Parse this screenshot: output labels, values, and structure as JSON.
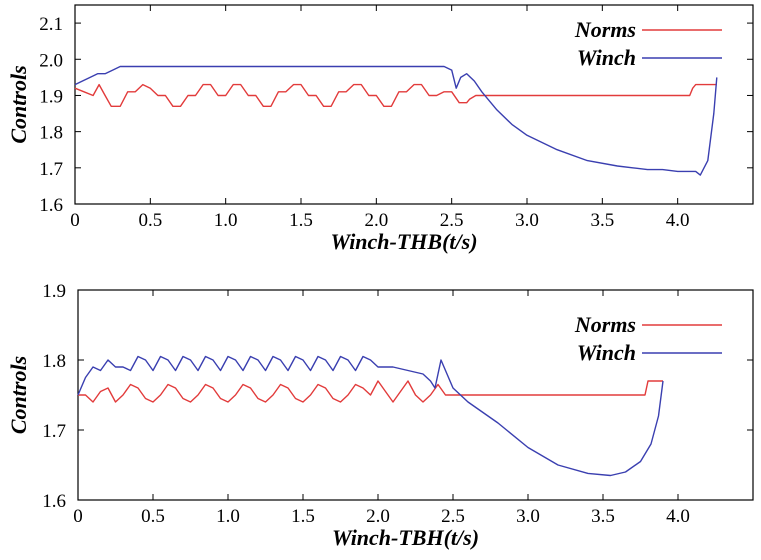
{
  "chart_data": [
    {
      "type": "line",
      "xlabel": "Winch-THB(t/s)",
      "ylabel": "Controls",
      "xlim": [
        0,
        4.5
      ],
      "ylim": [
        1.6,
        2.15
      ],
      "xticks": [
        0,
        0.5,
        1.0,
        1.5,
        2.0,
        2.5,
        3.0,
        3.5,
        4.0
      ],
      "xtick_labels": [
        "0",
        "0.5",
        "1.0",
        "1.5",
        "2.0",
        "2.5",
        "3.0",
        "3.5",
        "4.0"
      ],
      "yticks": [
        1.6,
        1.7,
        1.8,
        1.9,
        2.0,
        2.1
      ],
      "ytick_labels": [
        "1.6",
        "1.7",
        "1.8",
        "1.9",
        "2.0",
        "2.1"
      ],
      "legend_position": "top-right",
      "series": [
        {
          "name": "Norms",
          "color": "#e23b3b",
          "x": [
            0,
            0.06,
            0.12,
            0.16,
            0.2,
            0.24,
            0.3,
            0.35,
            0.4,
            0.45,
            0.5,
            0.55,
            0.6,
            0.65,
            0.7,
            0.75,
            0.8,
            0.85,
            0.9,
            0.95,
            1.0,
            1.05,
            1.1,
            1.15,
            1.2,
            1.25,
            1.3,
            1.35,
            1.4,
            1.45,
            1.5,
            1.55,
            1.6,
            1.65,
            1.7,
            1.75,
            1.8,
            1.85,
            1.9,
            1.95,
            2.0,
            2.05,
            2.1,
            2.15,
            2.2,
            2.25,
            2.3,
            2.35,
            2.4,
            2.45,
            2.5,
            2.55,
            2.6,
            2.62,
            2.66,
            2.7,
            2.8,
            3.0,
            3.2,
            3.4,
            3.6,
            3.8,
            4.0,
            4.08,
            4.1,
            4.12,
            4.2,
            4.26
          ],
          "y": [
            1.92,
            1.91,
            1.9,
            1.93,
            1.9,
            1.87,
            1.87,
            1.91,
            1.91,
            1.93,
            1.92,
            1.9,
            1.9,
            1.87,
            1.87,
            1.9,
            1.9,
            1.93,
            1.93,
            1.9,
            1.9,
            1.93,
            1.93,
            1.9,
            1.9,
            1.87,
            1.87,
            1.91,
            1.91,
            1.93,
            1.93,
            1.9,
            1.9,
            1.87,
            1.87,
            1.91,
            1.91,
            1.93,
            1.93,
            1.9,
            1.9,
            1.87,
            1.87,
            1.91,
            1.91,
            1.93,
            1.93,
            1.9,
            1.9,
            1.91,
            1.91,
            1.88,
            1.88,
            1.89,
            1.9,
            1.9,
            1.9,
            1.9,
            1.9,
            1.9,
            1.9,
            1.9,
            1.9,
            1.9,
            1.92,
            1.93,
            1.93,
            1.93
          ]
        },
        {
          "name": "Winch",
          "color": "#3a3fb0",
          "x": [
            0,
            0.05,
            0.1,
            0.15,
            0.2,
            0.25,
            0.3,
            0.4,
            0.5,
            0.6,
            0.7,
            0.8,
            0.9,
            1.0,
            1.1,
            1.2,
            1.3,
            1.4,
            1.5,
            1.6,
            1.7,
            1.8,
            1.9,
            2.0,
            2.1,
            2.2,
            2.3,
            2.4,
            2.45,
            2.5,
            2.53,
            2.56,
            2.6,
            2.65,
            2.7,
            2.8,
            2.9,
            3.0,
            3.2,
            3.4,
            3.6,
            3.7,
            3.8,
            3.9,
            4.0,
            4.08,
            4.12,
            4.15,
            4.2,
            4.24,
            4.26
          ],
          "y": [
            1.93,
            1.94,
            1.95,
            1.96,
            1.96,
            1.97,
            1.98,
            1.98,
            1.98,
            1.98,
            1.98,
            1.98,
            1.98,
            1.98,
            1.98,
            1.98,
            1.98,
            1.98,
            1.98,
            1.98,
            1.98,
            1.98,
            1.98,
            1.98,
            1.98,
            1.98,
            1.98,
            1.98,
            1.98,
            1.97,
            1.92,
            1.95,
            1.96,
            1.94,
            1.91,
            1.86,
            1.82,
            1.79,
            1.75,
            1.72,
            1.705,
            1.7,
            1.695,
            1.695,
            1.69,
            1.69,
            1.69,
            1.68,
            1.72,
            1.85,
            1.95
          ]
        }
      ]
    },
    {
      "type": "line",
      "xlabel": "Winch-TBH(t/s)",
      "ylabel": "Controls",
      "xlim": [
        0,
        4.5
      ],
      "ylim": [
        1.6,
        1.9
      ],
      "xticks": [
        0,
        0.5,
        1.0,
        1.5,
        2.0,
        2.5,
        3.0,
        3.5,
        4.0
      ],
      "xtick_labels": [
        "0",
        "0.5",
        "1.0",
        "1.5",
        "2.0",
        "2.5",
        "3.0",
        "3.5",
        "4.0"
      ],
      "yticks": [
        1.6,
        1.7,
        1.8,
        1.9
      ],
      "ytick_labels": [
        "1.6",
        "1.7",
        "1.8",
        "1.9"
      ],
      "legend_position": "top-right",
      "series": [
        {
          "name": "Norms",
          "color": "#e23b3b",
          "x": [
            0,
            0.05,
            0.1,
            0.15,
            0.2,
            0.25,
            0.3,
            0.35,
            0.4,
            0.45,
            0.5,
            0.55,
            0.6,
            0.65,
            0.7,
            0.75,
            0.8,
            0.85,
            0.9,
            0.95,
            1.0,
            1.05,
            1.1,
            1.15,
            1.2,
            1.25,
            1.3,
            1.35,
            1.4,
            1.45,
            1.5,
            1.55,
            1.6,
            1.65,
            1.7,
            1.75,
            1.8,
            1.85,
            1.9,
            1.95,
            2.0,
            2.05,
            2.1,
            2.15,
            2.2,
            2.25,
            2.3,
            2.35,
            2.4,
            2.45,
            2.5,
            2.6,
            2.8,
            3.0,
            3.2,
            3.4,
            3.6,
            3.78,
            3.8,
            3.85,
            3.9
          ],
          "y": [
            1.75,
            1.75,
            1.74,
            1.755,
            1.76,
            1.74,
            1.75,
            1.765,
            1.76,
            1.745,
            1.74,
            1.75,
            1.765,
            1.76,
            1.745,
            1.74,
            1.75,
            1.765,
            1.76,
            1.745,
            1.74,
            1.75,
            1.765,
            1.76,
            1.745,
            1.74,
            1.75,
            1.765,
            1.76,
            1.745,
            1.74,
            1.75,
            1.765,
            1.76,
            1.745,
            1.74,
            1.75,
            1.765,
            1.76,
            1.75,
            1.77,
            1.755,
            1.74,
            1.755,
            1.77,
            1.75,
            1.74,
            1.75,
            1.765,
            1.75,
            1.75,
            1.75,
            1.75,
            1.75,
            1.75,
            1.75,
            1.75,
            1.75,
            1.77,
            1.77,
            1.77
          ]
        },
        {
          "name": "Winch",
          "color": "#3a3fb0",
          "x": [
            0,
            0.05,
            0.1,
            0.15,
            0.2,
            0.25,
            0.3,
            0.35,
            0.4,
            0.45,
            0.5,
            0.55,
            0.6,
            0.65,
            0.7,
            0.75,
            0.8,
            0.85,
            0.9,
            0.95,
            1.0,
            1.05,
            1.1,
            1.15,
            1.2,
            1.25,
            1.3,
            1.35,
            1.4,
            1.45,
            1.5,
            1.55,
            1.6,
            1.65,
            1.7,
            1.75,
            1.8,
            1.85,
            1.9,
            1.95,
            2.0,
            2.1,
            2.2,
            2.3,
            2.35,
            2.38,
            2.42,
            2.46,
            2.5,
            2.6,
            2.8,
            3.0,
            3.2,
            3.4,
            3.55,
            3.65,
            3.75,
            3.82,
            3.87,
            3.9
          ],
          "y": [
            1.75,
            1.775,
            1.79,
            1.785,
            1.8,
            1.79,
            1.79,
            1.785,
            1.805,
            1.8,
            1.785,
            1.805,
            1.8,
            1.785,
            1.805,
            1.8,
            1.785,
            1.805,
            1.8,
            1.785,
            1.805,
            1.8,
            1.785,
            1.805,
            1.8,
            1.785,
            1.805,
            1.8,
            1.785,
            1.805,
            1.8,
            1.785,
            1.805,
            1.8,
            1.785,
            1.805,
            1.8,
            1.785,
            1.805,
            1.8,
            1.79,
            1.79,
            1.785,
            1.78,
            1.77,
            1.76,
            1.8,
            1.78,
            1.76,
            1.74,
            1.71,
            1.675,
            1.65,
            1.638,
            1.635,
            1.64,
            1.655,
            1.68,
            1.72,
            1.77
          ]
        }
      ]
    }
  ]
}
